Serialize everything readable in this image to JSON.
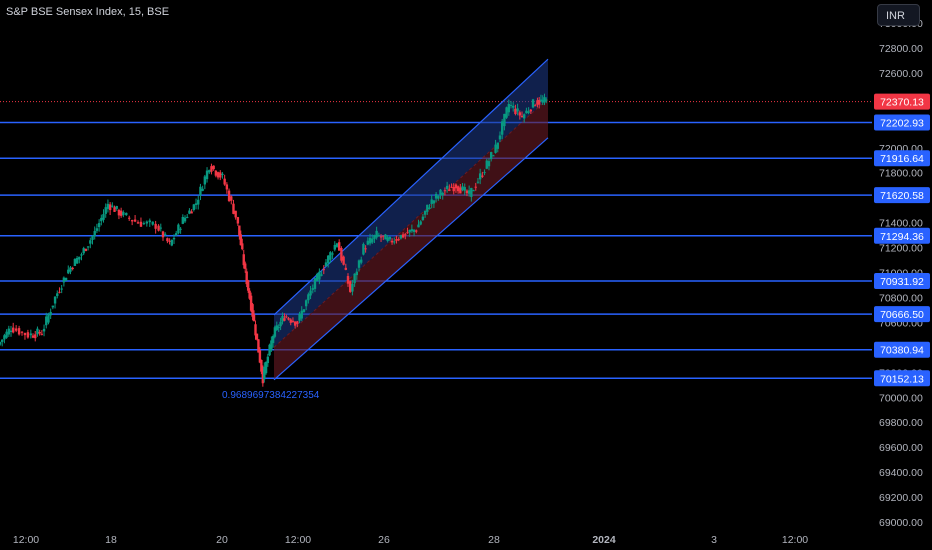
{
  "header": {
    "symbol_title": "S&P BSE Sensex Index, 15, BSE",
    "currency_label": "INR"
  },
  "colors": {
    "background": "#000000",
    "axis_text": "#b2b5be",
    "level_line": "#2962ff",
    "level_label_bg": "#2962ff",
    "last_price_bg": "#f23645",
    "candle_up": "#089981",
    "candle_down": "#f23645",
    "channel_upper_fill": "#1e3a8a",
    "channel_lower_fill": "#6b1a24",
    "channel_edge": "#2962ff",
    "fib_text": "#2962ff"
  },
  "chart_data": {
    "type": "candlestick",
    "title": "S&P BSE Sensex Index, 15, BSE",
    "y_axis": {
      "ticks": [
        69000,
        69200,
        69400,
        69600,
        69800,
        70000,
        70200,
        70400,
        70600,
        70800,
        71000,
        71200,
        71400,
        71600,
        71800,
        72000,
        72200,
        72400,
        72600,
        72800,
        73000
      ],
      "tick_labels": [
        "69000.00",
        "69200.00",
        "69400.00",
        "69600.00",
        "69800.00",
        "70000.00",
        "70200.00",
        "70400.00",
        "70600.00",
        "70800.00",
        "71000.00",
        "71200.00",
        "71400.00",
        "71600.00",
        "71800.00",
        "72000.00",
        "72200.00",
        "72400.00",
        "72600.00",
        "72800.00",
        "73000.00"
      ]
    },
    "x_axis": {
      "tick_labels": [
        "12:00",
        "18",
        "20",
        "12:00",
        "26",
        "28",
        "2024",
        "3",
        "12:00"
      ],
      "bold_labels": [
        "2024"
      ]
    },
    "horizontal_levels": [
      72202.93,
      71916.64,
      71620.58,
      71294.36,
      70931.92,
      70666.5,
      70380.94,
      70152.13
    ],
    "level_labels": [
      "72202.93",
      "71916.64",
      "71620.58",
      "71294.36",
      "70931.92",
      "70666.50",
      "70380.94",
      "70152.13"
    ],
    "last_price": 72370.13,
    "last_price_label": "72370.13",
    "channel": {
      "upper_line": {
        "start_price": 70660,
        "end_price": 72710
      },
      "lower_line": {
        "start_price": 70140,
        "end_price": 72080
      },
      "mid_line": {
        "start_price": 70400,
        "end_price": 72395
      }
    },
    "annotation": "0.9689697384227354",
    "price_path": [
      {
        "t": 0.0,
        "o": 70180,
        "h": 70460,
        "l": 70120,
        "c": 70420
      },
      {
        "t": 0.015,
        "o": 70420,
        "h": 70600,
        "l": 70360,
        "c": 70560
      },
      {
        "t": 0.035,
        "o": 70560,
        "h": 70640,
        "l": 70480,
        "c": 70500
      },
      {
        "t": 0.05,
        "o": 70500,
        "h": 70560,
        "l": 70440,
        "c": 70520
      },
      {
        "t": 0.065,
        "o": 70520,
        "h": 70820,
        "l": 70500,
        "c": 70800
      },
      {
        "t": 0.08,
        "o": 70800,
        "h": 71050,
        "l": 70760,
        "c": 71020
      },
      {
        "t": 0.095,
        "o": 71020,
        "h": 71180,
        "l": 70980,
        "c": 71150
      },
      {
        "t": 0.11,
        "o": 71150,
        "h": 71350,
        "l": 71050,
        "c": 71320
      },
      {
        "t": 0.125,
        "o": 71320,
        "h": 71600,
        "l": 71250,
        "c": 71550
      },
      {
        "t": 0.14,
        "o": 71550,
        "h": 71600,
        "l": 71420,
        "c": 71470
      },
      {
        "t": 0.16,
        "o": 71470,
        "h": 71520,
        "l": 71300,
        "c": 71400
      },
      {
        "t": 0.18,
        "o": 71400,
        "h": 71450,
        "l": 71300,
        "c": 71380
      },
      {
        "t": 0.195,
        "o": 71380,
        "h": 71420,
        "l": 71180,
        "c": 71220
      },
      {
        "t": 0.21,
        "o": 71220,
        "h": 71450,
        "l": 71200,
        "c": 71420
      },
      {
        "t": 0.225,
        "o": 71420,
        "h": 71620,
        "l": 71380,
        "c": 71560
      },
      {
        "t": 0.24,
        "o": 71560,
        "h": 71900,
        "l": 71520,
        "c": 71860
      },
      {
        "t": 0.255,
        "o": 71860,
        "h": 71920,
        "l": 71700,
        "c": 71760
      },
      {
        "t": 0.27,
        "o": 71760,
        "h": 71780,
        "l": 71400,
        "c": 71450
      },
      {
        "t": 0.28,
        "o": 71450,
        "h": 71480,
        "l": 70950,
        "c": 71000
      },
      {
        "t": 0.29,
        "o": 71000,
        "h": 71050,
        "l": 70500,
        "c": 70600
      },
      {
        "t": 0.3,
        "o": 70600,
        "h": 70650,
        "l": 70000,
        "c": 70150
      },
      {
        "t": 0.312,
        "o": 70150,
        "h": 70550,
        "l": 70080,
        "c": 70500
      },
      {
        "t": 0.325,
        "o": 70500,
        "h": 70700,
        "l": 70420,
        "c": 70650
      },
      {
        "t": 0.34,
        "o": 70650,
        "h": 70700,
        "l": 70540,
        "c": 70600
      },
      {
        "t": 0.355,
        "o": 70600,
        "h": 70900,
        "l": 70560,
        "c": 70850
      },
      {
        "t": 0.37,
        "o": 70850,
        "h": 71100,
        "l": 70800,
        "c": 71050
      },
      {
        "t": 0.385,
        "o": 71050,
        "h": 71300,
        "l": 71000,
        "c": 71250
      },
      {
        "t": 0.4,
        "o": 71250,
        "h": 71300,
        "l": 70800,
        "c": 70850
      },
      {
        "t": 0.415,
        "o": 70850,
        "h": 71250,
        "l": 70820,
        "c": 71200
      },
      {
        "t": 0.43,
        "o": 71200,
        "h": 71350,
        "l": 71100,
        "c": 71300
      },
      {
        "t": 0.445,
        "o": 71300,
        "h": 71380,
        "l": 71150,
        "c": 71250
      },
      {
        "t": 0.46,
        "o": 71250,
        "h": 71350,
        "l": 71200,
        "c": 71300
      },
      {
        "t": 0.475,
        "o": 71300,
        "h": 71400,
        "l": 71250,
        "c": 71350
      },
      {
        "t": 0.49,
        "o": 71350,
        "h": 71600,
        "l": 71300,
        "c": 71550
      },
      {
        "t": 0.505,
        "o": 71550,
        "h": 71700,
        "l": 71480,
        "c": 71650
      },
      {
        "t": 0.52,
        "o": 71650,
        "h": 71750,
        "l": 71550,
        "c": 71700
      },
      {
        "t": 0.535,
        "o": 71700,
        "h": 71750,
        "l": 71580,
        "c": 71620
      },
      {
        "t": 0.55,
        "o": 71620,
        "h": 71850,
        "l": 71600,
        "c": 71800
      },
      {
        "t": 0.565,
        "o": 71800,
        "h": 72050,
        "l": 71750,
        "c": 72000
      },
      {
        "t": 0.58,
        "o": 72000,
        "h": 72400,
        "l": 71980,
        "c": 72350
      },
      {
        "t": 0.595,
        "o": 72350,
        "h": 72400,
        "l": 72200,
        "c": 72250
      },
      {
        "t": 0.61,
        "o": 72250,
        "h": 72400,
        "l": 72220,
        "c": 72370
      },
      {
        "t": 0.622,
        "o": 72370,
        "h": 72430,
        "l": 72300,
        "c": 72370
      }
    ]
  }
}
